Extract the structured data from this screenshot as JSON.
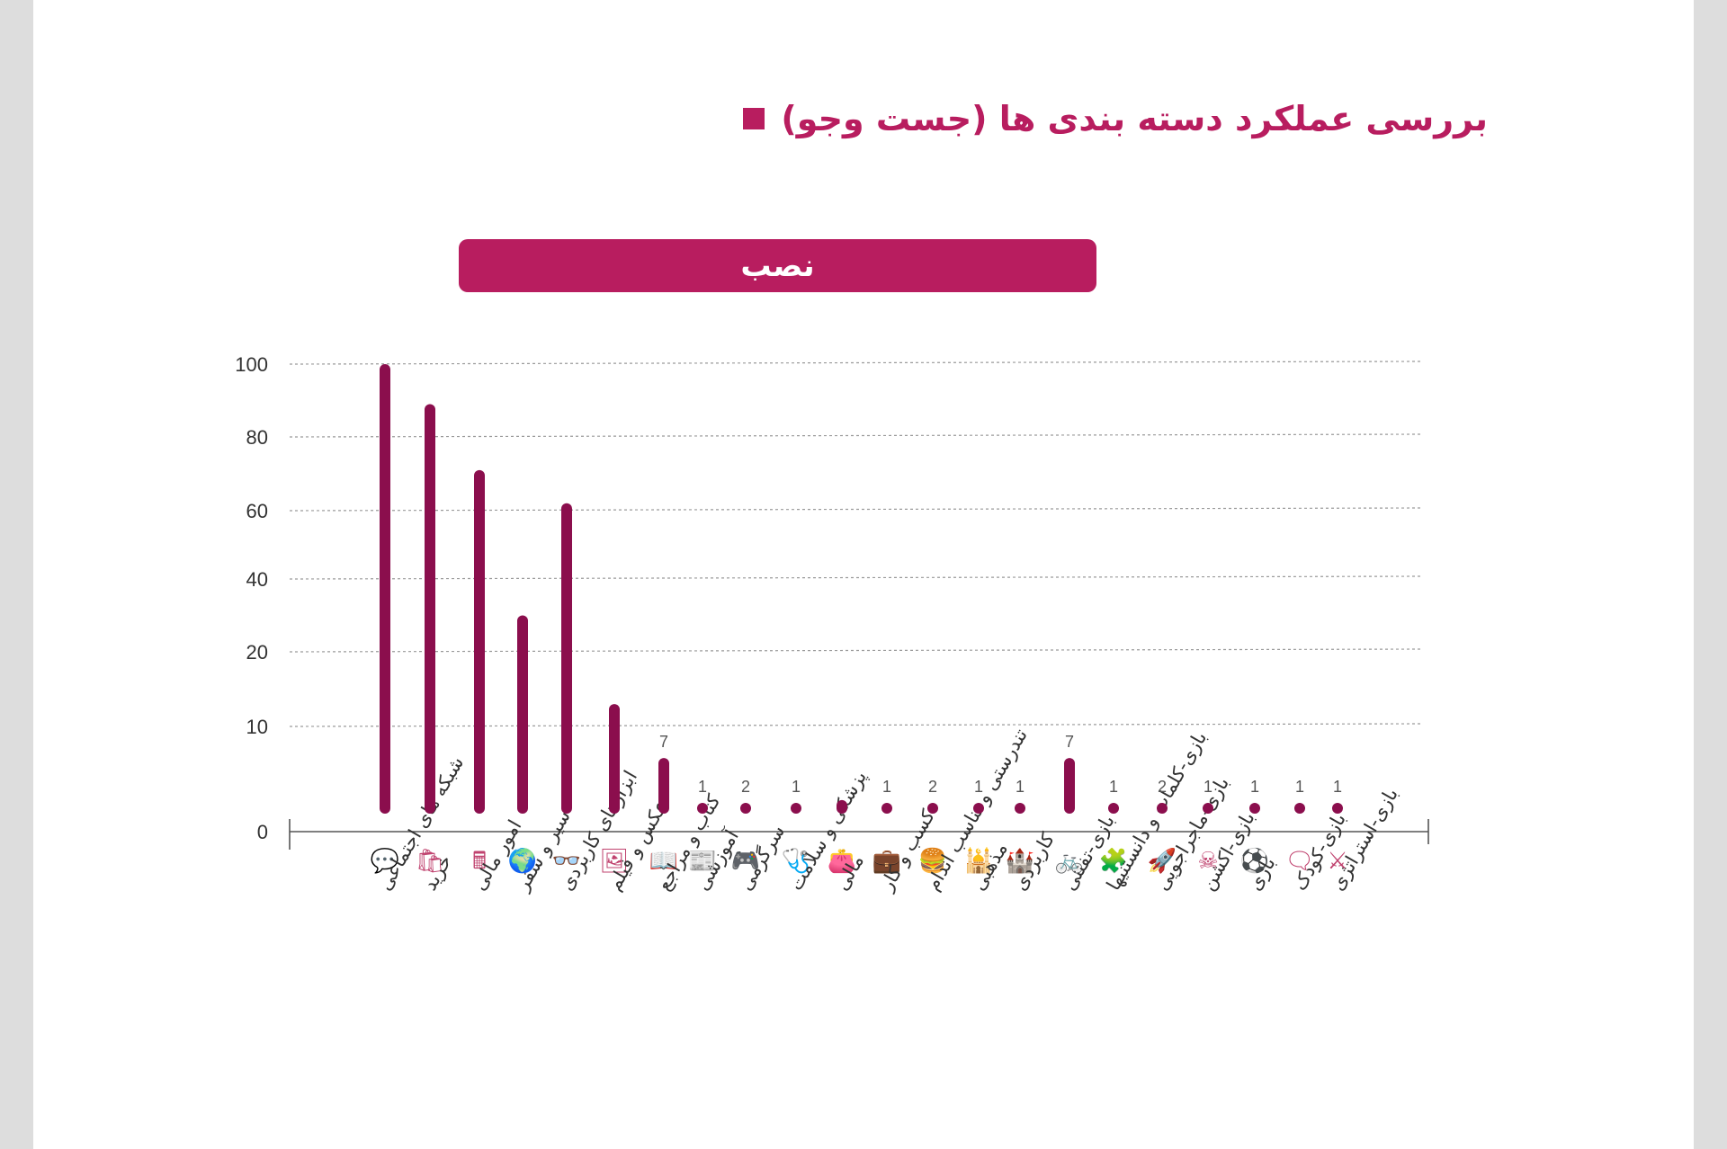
{
  "title": "بررسی عملکرد دسته بندی ها (جست وجو)",
  "banner": "نصب",
  "colors": {
    "accent": "#b81d5f",
    "bar": "#8b0e4d",
    "grid": "#9a9a9a"
  },
  "chart_data": {
    "type": "bar",
    "title": "نصب",
    "ylabel": "",
    "xlabel": "",
    "y_ticks": [
      "0",
      "10",
      "20",
      "40",
      "60",
      "80",
      "100"
    ],
    "grid": true,
    "categories": [
      "شبکه های اجتماعی",
      "خرید",
      "امور مالی",
      "سیر و سفر",
      "ابزارهای کاربردی",
      "عکس و فیلم",
      "کتاب و مراجع",
      "آموزشی",
      "سرگرمی",
      "پزشکی و سلامت",
      "مالی",
      "کسب و کار",
      "تندرستی و تناسب اندام",
      "مذهبی",
      "کاربردی",
      "بازی-تفننی",
      "بازی-کلمات و دانستنیها",
      "بازی-ماجراجویی",
      "بازی-اکشن",
      "بازی",
      "بازی-کودک",
      "بازی-استراتژی"
    ],
    "icons": [
      "chat-heart-icon",
      "shopping-bags-icon",
      "calculator-icon",
      "globe-icon",
      "glasses-3d-icon",
      "photos-icon",
      "open-book-icon",
      "newspaper-icon",
      "gamepad-icon",
      "stethoscope-icon",
      "wallet-icon",
      "briefcase-icon",
      "fast-food-icon",
      "mosque-icon",
      "castle-icon",
      "bicycle-icon",
      "puzzle-icon",
      "rocket-icon",
      "crossed-bones-icon",
      "soccer-ball-icon",
      "speech-bubble-icon",
      "crossed-swords-icon"
    ],
    "values": [
      100,
      89,
      71,
      30,
      62,
      13,
      7,
      1,
      2,
      1,
      3,
      1,
      2,
      1,
      1,
      7,
      1,
      2,
      1,
      1,
      1,
      1
    ],
    "data_labels": [
      "",
      "",
      "",
      "",
      "",
      "",
      "7",
      "1",
      "2",
      "1",
      "",
      "1",
      "2",
      "1",
      "1",
      "7",
      "1",
      "2",
      "1",
      "1",
      "1",
      "1"
    ]
  }
}
